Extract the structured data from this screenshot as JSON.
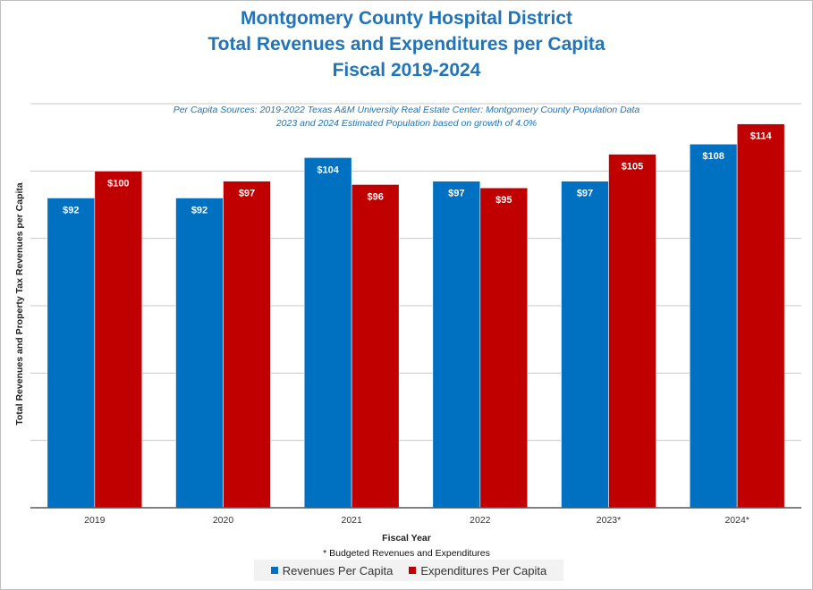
{
  "colors": {
    "revenues": "#0070c0",
    "expenditures": "#c00000",
    "title": "#2174b8",
    "grid": "#c8c8c8"
  },
  "titles": [
    "Montgomery County Hospital District",
    "Total Revenues and Expenditures per Capita",
    "Fiscal 2019-2024"
  ],
  "notes": [
    "Per Capita Sources: 2019-2022 Texas A&M University Real Estate Center: Montgomery County Population Data",
    "2023 and 2024 Estimated Population based on growth of 4.0%"
  ],
  "footnote": "* Budgeted Revenues and Expenditures",
  "chart_data": {
    "type": "bar",
    "categories": [
      "2019",
      "2020",
      "2021",
      "2022",
      "2023*",
      "2024*"
    ],
    "series": [
      {
        "name": "Revenues Per Capita",
        "values": [
          92,
          92,
          104,
          97,
          97,
          108
        ],
        "labels": [
          "$92",
          "$92",
          "$104",
          "$97",
          "$97",
          "$108"
        ],
        "color": "#0070c0"
      },
      {
        "name": "Expenditures Per Capita",
        "values": [
          100,
          97,
          96,
          95,
          105,
          114
        ],
        "labels": [
          "$100",
          "$97",
          "$96",
          "$95",
          "$105",
          "$114"
        ],
        "color": "#c00000"
      }
    ],
    "xlabel": "Fiscal Year",
    "ylabel": "Total Revenues and  Property Tax Revenues  per Capita",
    "ylim": [
      0,
      120
    ],
    "y_grid_step": 20,
    "y_tick_labels_shown": false,
    "grid": true,
    "legend": "bottom"
  }
}
